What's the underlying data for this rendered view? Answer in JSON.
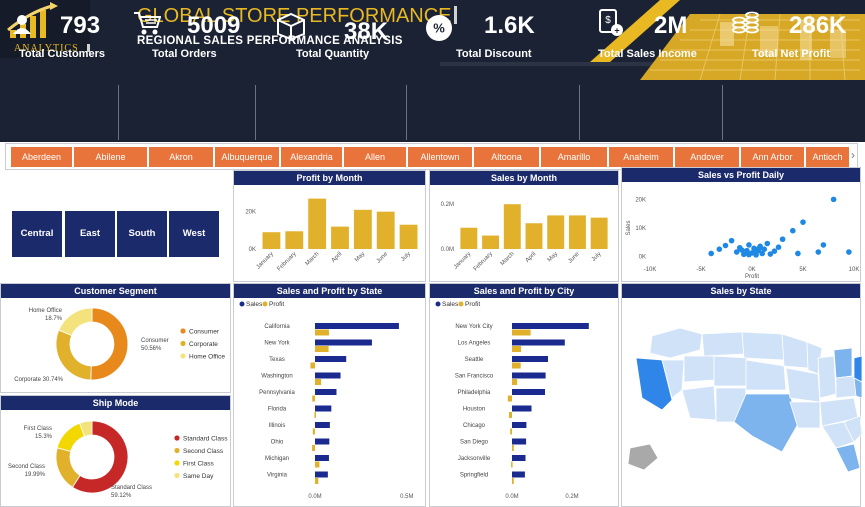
{
  "header": {
    "logo_text": "ANALYTICS",
    "title": "GLOBAL STORE PERFORMANCE",
    "subtitle": "REGIONAL SALES PERFORMANCE ANALYSIS"
  },
  "kpis": [
    {
      "icon": "user-icon",
      "value": "793",
      "label": "Total Customers"
    },
    {
      "icon": "cart-icon",
      "value": "5009",
      "label": "Total Orders"
    },
    {
      "icon": "box-icon",
      "value": "38K",
      "label": "Total Quantity"
    },
    {
      "icon": "percent-icon",
      "value": "1.6K",
      "label": "Total Discount"
    },
    {
      "icon": "income-icon",
      "value": "2M",
      "label": "Total Sales Income"
    },
    {
      "icon": "coins-icon",
      "value": "286K",
      "label": "Total Net Profit"
    }
  ],
  "city_slicer": {
    "items": [
      "Aberdeen",
      "Abilene",
      "Akron",
      "Albuquerque",
      "Alexandria",
      "Allen",
      "Allentown",
      "Altoona",
      "Amarillo",
      "Anaheim",
      "Andover",
      "Ann Arbor",
      "Antioch"
    ],
    "scroll_glyph": "›"
  },
  "regions": [
    "Central",
    "East",
    "South",
    "West"
  ],
  "colors": {
    "navy": "#1b2a6b",
    "gold": "#e8b923",
    "orange": "#e8743b",
    "bar_blue": "#1a2a8f",
    "dark": "#1b2233"
  },
  "panels": {
    "profit_by_month": "Profit by Month",
    "sales_by_month": "Sales by Month",
    "sales_vs_profit": "Sales vs Profit Daily",
    "customer_segment": "Customer Segment",
    "ship_mode": "Ship Mode",
    "sales_profit_state": "Sales and Profit by State",
    "sales_profit_city": "Sales and Profit by City",
    "sales_by_state": "Sales by State"
  },
  "chart_data": [
    {
      "id": "profit_by_month",
      "type": "bar",
      "title": "Profit by Month",
      "categories": [
        "January",
        "February",
        "March",
        "April",
        "May",
        "June",
        "July"
      ],
      "values": [
        9000,
        9500,
        27000,
        12000,
        21000,
        20000,
        13000
      ],
      "yticks": [
        "0K",
        "20K"
      ],
      "ylim": [
        0,
        30000
      ],
      "color": "#e1b12c"
    },
    {
      "id": "sales_by_month",
      "type": "bar",
      "title": "Sales by Month",
      "categories": [
        "January",
        "February",
        "March",
        "April",
        "May",
        "June",
        "July"
      ],
      "values": [
        95000,
        60000,
        200000,
        115000,
        150000,
        150000,
        140000
      ],
      "yticks": [
        "0.0M",
        "0.2M"
      ],
      "ylim": [
        0,
        250000
      ],
      "color": "#e1b12c"
    },
    {
      "id": "sales_vs_profit",
      "type": "scatter",
      "title": "Sales vs Profit Daily",
      "xlabel": "Profit",
      "ylabel": "Sales",
      "xticks": [
        "-10K",
        "-5K",
        "0K",
        "5K",
        "10K"
      ],
      "yticks": [
        "0K",
        "10K",
        "20K"
      ],
      "xlim": [
        -10000,
        10000
      ],
      "ylim": [
        -2000,
        24000
      ],
      "points": [
        [
          -4000,
          1000
        ],
        [
          -3200,
          2500
        ],
        [
          -2600,
          3800
        ],
        [
          -2000,
          5500
        ],
        [
          -1500,
          1500
        ],
        [
          -1200,
          3000
        ],
        [
          -800,
          700
        ],
        [
          -500,
          2000
        ],
        [
          -300,
          4000
        ],
        [
          0,
          1200
        ],
        [
          200,
          2800
        ],
        [
          400,
          500
        ],
        [
          600,
          2000
        ],
        [
          800,
          3500
        ],
        [
          1000,
          1000
        ],
        [
          1200,
          2500
        ],
        [
          1500,
          4500
        ],
        [
          1800,
          800
        ],
        [
          2200,
          1800
        ],
        [
          2600,
          3200
        ],
        [
          3000,
          6000
        ],
        [
          4000,
          9000
        ],
        [
          4500,
          1000
        ],
        [
          5000,
          12000
        ],
        [
          6500,
          1500
        ],
        [
          7000,
          4000
        ],
        [
          8000,
          20000
        ],
        [
          9500,
          1500
        ],
        [
          -300,
          600
        ],
        [
          300,
          1400
        ],
        [
          700,
          2800
        ],
        [
          -1000,
          2200
        ]
      ],
      "color": "#1e88e5"
    },
    {
      "id": "customer_segment",
      "type": "pie",
      "title": "Customer Segment",
      "labels": [
        "Consumer",
        "Corporate",
        "Home Office"
      ],
      "values": [
        50.56,
        30.74,
        18.7
      ],
      "slice_labels": [
        "Consumer\n50.56%",
        "Corporate 30.74%",
        "Home Office\n18.7%"
      ],
      "colors": [
        "#e8891b",
        "#e1b12c",
        "#f4e37c"
      ]
    },
    {
      "id": "ship_mode",
      "type": "pie",
      "title": "Ship Mode",
      "labels": [
        "Standard Class",
        "Second Class",
        "First Class",
        "Same Day"
      ],
      "values": [
        59.12,
        19.99,
        15.3,
        5.59
      ],
      "slice_labels": [
        "Standard Class\n59.12%",
        "Second Class\n19.99%",
        "First Class\n15.3%",
        ""
      ],
      "colors": [
        "#c62828",
        "#e1b12c",
        "#f2d700",
        "#f4e37c"
      ]
    },
    {
      "id": "sales_profit_state",
      "type": "bar",
      "title": "Sales and Profit by State",
      "legend": [
        "Sales",
        "Profit"
      ],
      "categories": [
        "California",
        "New York",
        "Texas",
        "Washington",
        "Pennsylvania",
        "Florida",
        "Illinois",
        "Ohio",
        "Michigan",
        "Virginia"
      ],
      "series": [
        {
          "name": "Sales",
          "values": [
            457000,
            310000,
            170000,
            139000,
            117000,
            89000,
            81000,
            78000,
            76000,
            70000
          ]
        },
        {
          "name": "Profit",
          "values": [
            76000,
            74000,
            -25000,
            33000,
            -15000,
            -3000,
            -12000,
            -16000,
            24000,
            18000
          ]
        }
      ],
      "xticks": [
        "0.0M",
        "0.5M"
      ],
      "xlim": [
        0,
        550000
      ]
    },
    {
      "id": "sales_profit_city",
      "type": "bar",
      "title": "Sales and Profit by City",
      "legend": [
        "Sales",
        "Profit"
      ],
      "categories": [
        "New York City",
        "Los Angeles",
        "Seattle",
        "San Francisco",
        "Philadelphia",
        "Houston",
        "Chicago",
        "San Diego",
        "Jacksonville",
        "Springfield"
      ],
      "series": [
        {
          "name": "Sales",
          "values": [
            256000,
            176000,
            120000,
            112000,
            110000,
            65000,
            48000,
            47000,
            45000,
            43000
          ]
        },
        {
          "name": "Profit",
          "values": [
            62000,
            30000,
            29000,
            17000,
            -14000,
            -10000,
            -6000,
            6000,
            -3000,
            6000
          ]
        }
      ],
      "xticks": [
        "0.0M",
        "0.2M"
      ],
      "xlim": [
        0,
        300000
      ]
    }
  ],
  "map": {
    "title": "Sales by State",
    "colors": {
      "light": "#cfe2f8",
      "mid": "#7db4ee",
      "dark": "#2f86e8",
      "gray": "#a9a9a9"
    }
  }
}
